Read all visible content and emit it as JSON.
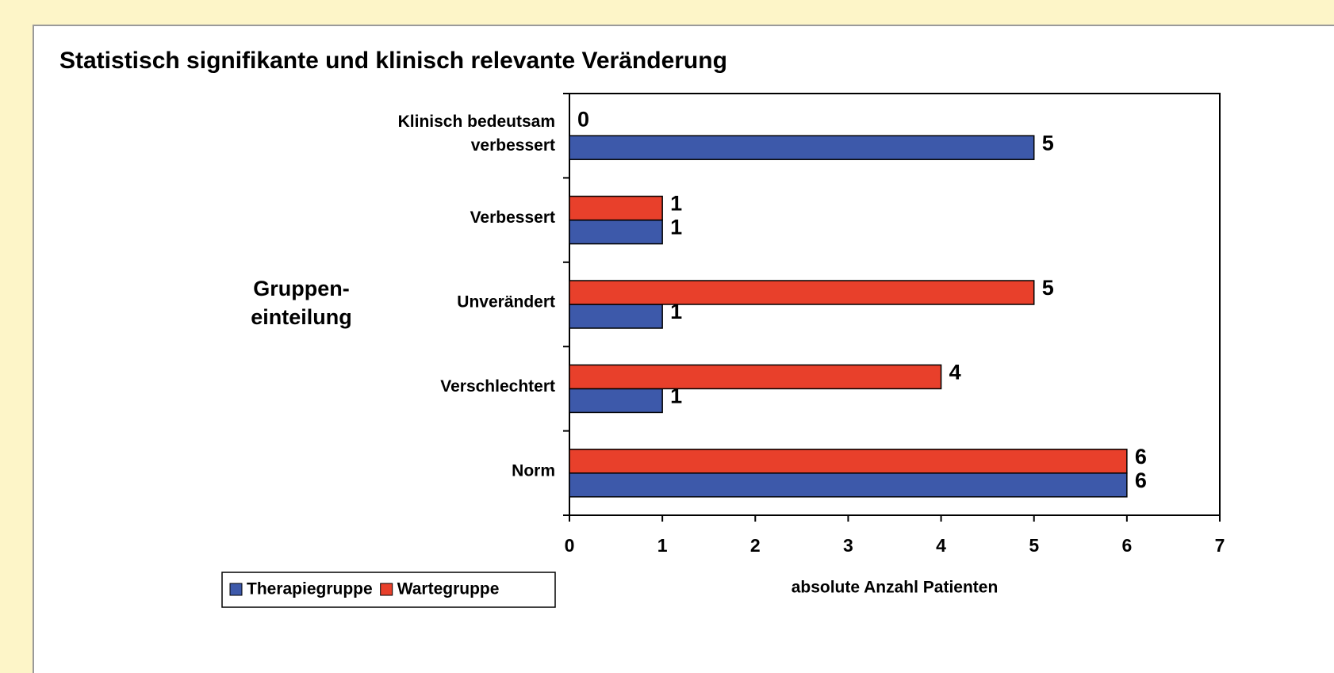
{
  "chart_data": {
    "type": "barh",
    "title": "Statistisch signifikante und klinisch relevante Veränderung",
    "y_label": "Gruppen-einteilung",
    "x_label": "absolute Anzahl Patienten",
    "categories": [
      "Klinisch bedeutsam verbessert",
      "Verbessert",
      "Unverändert",
      "Verschlechtert",
      "Norm"
    ],
    "series": [
      {
        "name": "Therapiegruppe",
        "color": "#3d59aa",
        "values": [
          5,
          1,
          1,
          1,
          6
        ]
      },
      {
        "name": "Wartegruppe",
        "color": "#e8402b",
        "values": [
          0,
          1,
          5,
          4,
          6
        ]
      }
    ],
    "xlim": [
      0,
      7
    ],
    "xticks": [
      0,
      1,
      2,
      3,
      4,
      5,
      6,
      7
    ],
    "legend": "bottom-left"
  }
}
